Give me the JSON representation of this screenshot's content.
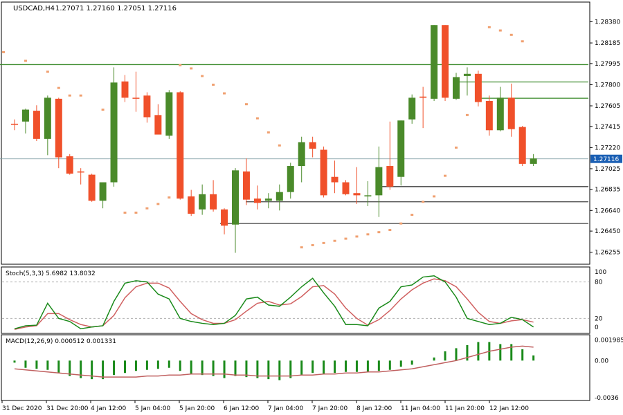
{
  "colors": {
    "background": "#ffffff",
    "bull": "#4a8a2a",
    "bear": "#f0502a",
    "level": "#3a8a2a",
    "support": "#404040",
    "sar": "#f0a070",
    "stoch_main": "#1a8a1a",
    "stoch_signal": "#d06060",
    "macd_hist": "#1a8a1a",
    "macd_signal": "#c06060",
    "current_price_bg": "#1a5fb4"
  },
  "chart_data": {
    "type": "candlestick",
    "title": "USDCAD,H4",
    "ohlc_header": "1.27071 1.27160 1.27051 1.27116",
    "price_ticks": [
      "1.28380",
      "1.28185",
      "1.27995",
      "1.27800",
      "1.27605",
      "1.27415",
      "1.27220",
      "1.27025",
      "1.26835",
      "1.26640",
      "1.26450",
      "1.26255"
    ],
    "current_price": "1.27116",
    "time_labels": [
      "31 Dec 2020",
      "31 Dec 20:00",
      "4 Jan 12:00",
      "5 Jan 04:00",
      "5 Jan 20:00",
      "6 Jan 12:00",
      "7 Jan 04:00",
      "7 Jan 20:00",
      "8 Jan 12:00",
      "11 Jan 04:00",
      "11 Jan 20:00",
      "12 Jan 12:00"
    ],
    "ylim": [
      1.2617,
      1.2853
    ],
    "candles": [
      [
        1.2744,
        1.2748,
        1.2738,
        1.2743
      ],
      [
        1.2746,
        1.2758,
        1.2735,
        1.2757
      ],
      [
        1.2756,
        1.2761,
        1.2728,
        1.273
      ],
      [
        1.273,
        1.277,
        1.2715,
        1.2768
      ],
      [
        1.2767,
        1.2768,
        1.2703,
        1.2713
      ],
      [
        1.2714,
        1.2716,
        1.2697,
        1.2698
      ],
      [
        1.27,
        1.2703,
        1.2688,
        1.2699
      ],
      [
        1.2697,
        1.2698,
        1.2672,
        1.2673
      ],
      [
        1.2673,
        1.2688,
        1.2666,
        1.269
      ],
      [
        1.269,
        1.2796,
        1.2686,
        1.2782
      ],
      [
        1.2783,
        1.2789,
        1.2764,
        1.2768
      ],
      [
        1.2768,
        1.2792,
        1.2755,
        1.2767
      ],
      [
        1.277,
        1.2773,
        1.2745,
        1.275
      ],
      [
        1.2752,
        1.2762,
        1.2735,
        1.2734
      ],
      [
        1.2733,
        1.2775,
        1.273,
        1.2773
      ],
      [
        1.2773,
        1.2774,
        1.2674,
        1.2675
      ],
      [
        1.2677,
        1.2683,
        1.2659,
        1.2661
      ],
      [
        1.2665,
        1.2688,
        1.266,
        1.2679
      ],
      [
        1.2679,
        1.2692,
        1.2663,
        1.2665
      ],
      [
        1.2665,
        1.2666,
        1.2642,
        1.265
      ],
      [
        1.2651,
        1.2703,
        1.2625,
        1.2701
      ],
      [
        1.27,
        1.2712,
        1.2669,
        1.2674
      ],
      [
        1.2675,
        1.2687,
        1.2665,
        1.2671
      ],
      [
        1.2673,
        1.268,
        1.2666,
        1.2675
      ],
      [
        1.2673,
        1.2688,
        1.2664,
        1.2681
      ],
      [
        1.2681,
        1.2708,
        1.2675,
        1.2705
      ],
      [
        1.2705,
        1.2732,
        1.269,
        1.2727
      ],
      [
        1.2727,
        1.2732,
        1.2713,
        1.2721
      ],
      [
        1.272,
        1.2723,
        1.2676,
        1.2678
      ],
      [
        1.2695,
        1.271,
        1.268,
        1.269
      ],
      [
        1.269,
        1.2692,
        1.2678,
        1.2679
      ],
      [
        1.268,
        1.2704,
        1.267,
        1.2678
      ],
      [
        1.2677,
        1.2691,
        1.2668,
        1.2678
      ],
      [
        1.2678,
        1.2723,
        1.2658,
        1.2704
      ],
      [
        1.2705,
        1.2746,
        1.2683,
        1.2686
      ],
      [
        1.2695,
        1.2747,
        1.2687,
        1.2747
      ],
      [
        1.2748,
        1.2771,
        1.2744,
        1.2768
      ],
      [
        1.2769,
        1.2778,
        1.274,
        1.2768
      ],
      [
        1.2767,
        1.2835,
        1.2765,
        1.2835
      ],
      [
        1.2835,
        1.2835,
        1.2765,
        1.2768
      ],
      [
        1.2767,
        1.2791,
        1.2766,
        1.2787
      ],
      [
        1.2788,
        1.2796,
        1.277,
        1.279
      ],
      [
        1.279,
        1.2793,
        1.276,
        1.2764
      ],
      [
        1.2765,
        1.277,
        1.2733,
        1.2738
      ],
      [
        1.2738,
        1.2778,
        1.2737,
        1.2768
      ],
      [
        1.2768,
        1.2781,
        1.2732,
        1.2739
      ],
      [
        1.2741,
        1.2742,
        1.2705,
        1.2707
      ],
      [
        1.2707,
        1.2716,
        1.2705,
        1.2712
      ]
    ],
    "sar": [
      [
        -1,
        1.281
      ],
      [
        1,
        1.2802
      ],
      [
        3,
        1.2792
      ],
      [
        4,
        1.2777
      ],
      [
        5,
        1.277
      ],
      [
        6,
        1.277
      ],
      [
        8,
        1.2757
      ],
      [
        9,
        1.2742
      ],
      [
        10,
        1.2662
      ],
      [
        11,
        1.2662
      ],
      [
        12,
        1.2666
      ],
      [
        13,
        1.267
      ],
      [
        14,
        1.2676
      ],
      [
        15,
        1.2798
      ],
      [
        16,
        1.2795
      ],
      [
        17,
        1.2788
      ],
      [
        18,
        1.278
      ],
      [
        19,
        1.2772
      ],
      [
        21,
        1.2762
      ],
      [
        22,
        1.2749
      ],
      [
        23,
        1.2736
      ],
      [
        24,
        1.2724
      ],
      [
        26,
        1.263
      ],
      [
        27,
        1.2632
      ],
      [
        28,
        1.2634
      ],
      [
        29,
        1.2636
      ],
      [
        30,
        1.2638
      ],
      [
        31,
        1.264
      ],
      [
        32,
        1.2642
      ],
      [
        33,
        1.2644
      ],
      [
        34,
        1.2646
      ],
      [
        35,
        1.2652
      ],
      [
        36,
        1.266
      ],
      [
        37,
        1.2672
      ],
      [
        38,
        1.2677
      ],
      [
        39,
        1.2696
      ],
      [
        40,
        1.2722
      ],
      [
        41,
        1.2752
      ],
      [
        43,
        1.2833
      ],
      [
        44,
        1.283
      ],
      [
        45,
        1.2826
      ],
      [
        46,
        1.282
      ]
    ],
    "levels": [
      {
        "price": 1.27985,
        "x0": 0,
        "x1": 850,
        "kind": "level"
      },
      {
        "price": 1.27825,
        "x0": 655,
        "x1": 850,
        "kind": "level"
      },
      {
        "price": 1.27675,
        "x0": 690,
        "x1": 850,
        "kind": "level"
      },
      {
        "price": 1.27116,
        "x0": 0,
        "x1": 850,
        "kind": "current"
      },
      {
        "price": 1.2686,
        "x0": 548,
        "x1": 850,
        "kind": "support"
      },
      {
        "price": 1.2672,
        "x0": 355,
        "x1": 850,
        "kind": "support"
      },
      {
        "price": 1.2652,
        "x0": 318,
        "x1": 850,
        "kind": "support"
      }
    ],
    "stoch": {
      "label": "Stoch(5,3,3) 5.6982 13.8032",
      "levels": [
        "100",
        "80",
        "20",
        "0"
      ],
      "main": [
        3,
        8,
        9,
        45,
        20,
        15,
        3,
        6,
        8,
        48,
        78,
        82,
        80,
        60,
        52,
        20,
        15,
        12,
        10,
        12,
        25,
        52,
        55,
        42,
        40,
        55,
        72,
        86,
        62,
        40,
        10,
        10,
        8,
        37,
        48,
        72,
        75,
        88,
        90,
        80,
        55,
        20,
        15,
        10,
        12,
        22,
        18,
        6
      ],
      "signal": [
        2,
        6,
        8,
        28,
        28,
        18,
        10,
        6,
        8,
        25,
        54,
        72,
        78,
        78,
        70,
        48,
        28,
        18,
        12,
        12,
        18,
        32,
        45,
        48,
        42,
        44,
        56,
        72,
        74,
        60,
        37,
        20,
        9,
        18,
        33,
        52,
        67,
        78,
        85,
        82,
        72,
        52,
        30,
        15,
        12,
        16,
        18,
        14
      ]
    },
    "macd": {
      "label": "MACD(12,26,9) 0.000512 0.001331",
      "ticks": [
        "0.001985",
        "0.00",
        "-0.0036"
      ],
      "hist": [
        -0.0002,
        -0.0007,
        -0.0008,
        -0.0009,
        -0.0012,
        -0.0015,
        -0.0017,
        -0.0018,
        -0.0018,
        -0.0014,
        -0.0012,
        -0.001,
        -0.0009,
        -0.0008,
        -0.0007,
        -0.001,
        -0.0013,
        -0.0014,
        -0.0015,
        -0.0017,
        -0.0015,
        -0.0016,
        -0.0017,
        -0.0018,
        -0.0019,
        -0.0017,
        -0.0014,
        -0.0012,
        -0.0013,
        -0.0012,
        -0.0011,
        -0.0011,
        -0.0011,
        -0.001,
        -0.0009,
        -0.0006,
        -0.0004,
        0.0,
        0.0003,
        0.0009,
        0.0012,
        0.0015,
        0.0018,
        0.0018,
        0.0016,
        0.0016,
        0.0011,
        0.0005
      ],
      "signal": [
        -0.0008,
        -0.0009,
        -0.001,
        -0.0011,
        -0.0012,
        -0.0013,
        -0.0014,
        -0.0015,
        -0.0016,
        -0.0016,
        -0.0016,
        -0.0016,
        -0.0015,
        -0.0015,
        -0.0014,
        -0.0014,
        -0.0013,
        -0.0013,
        -0.0013,
        -0.0013,
        -0.0014,
        -0.0014,
        -0.0015,
        -0.0015,
        -0.0015,
        -0.0015,
        -0.0014,
        -0.0014,
        -0.0013,
        -0.0013,
        -0.0012,
        -0.0012,
        -0.0011,
        -0.0011,
        -0.001,
        -0.0009,
        -0.0008,
        -0.0006,
        -0.0004,
        -0.0002,
        0.0,
        0.0003,
        0.0006,
        0.0009,
        0.0011,
        0.0013,
        0.0014,
        0.0013
      ]
    }
  }
}
